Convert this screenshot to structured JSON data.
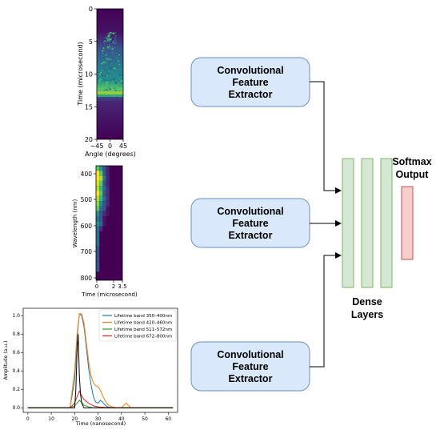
{
  "panel_top": {
    "ylabel": "Time (microsecond)",
    "xlabel": "Angle (degrees)",
    "yticks": [
      "0",
      "5",
      "10",
      "15",
      "20"
    ],
    "xticks": [
      "−45",
      "0",
      "45"
    ]
  },
  "panel_mid": {
    "ylabel": "Wavelength (nm)",
    "xlabel": "Time (microsecond)",
    "yticks": [
      "400",
      "500",
      "600",
      "700",
      "800"
    ],
    "xticks": [
      "0",
      "2",
      "3.5"
    ]
  },
  "extractors": [
    {
      "line1": "Convolutional",
      "line2": "Feature",
      "line3": "Extractor"
    },
    {
      "line1": "Convolutional",
      "line2": "Feature",
      "line3": "Extractor"
    },
    {
      "line1": "Convolutional",
      "line2": "Feature",
      "line3": "Extractor"
    }
  ],
  "dense": {
    "line1": "Dense",
    "line2": "Layers"
  },
  "softmax": {
    "line1": "Softmax",
    "line2": "Output"
  },
  "colors": {
    "extractor_fill": "#dae8fc",
    "extractor_stroke": "#6c8ebf",
    "dense_fill": "#d5e8d4",
    "dense_stroke": "#82b366",
    "softmax_fill": "#f8cecc",
    "softmax_stroke": "#b85450",
    "heat_dark": "#440154"
  },
  "chart_data": {
    "type": "line",
    "xlabel": "Time (nanosecond)",
    "ylabel": "Amplitude (a.u.)",
    "xlim": [
      -2,
      64
    ],
    "ylim": [
      -0.05,
      1.08
    ],
    "xticks": [
      "0",
      "10",
      "20",
      "30",
      "40",
      "50",
      "60"
    ],
    "yticks": [
      "0.0",
      "0.2",
      "0.4",
      "0.6",
      "0.8",
      "1.0"
    ],
    "legend_position": "top-right",
    "series": [
      {
        "name": "Lifetime band 350–400nm",
        "color": "#1f77b4",
        "x": [
          0,
          10,
          18,
          20,
          21,
          22,
          23,
          24,
          25,
          26,
          27,
          28,
          29,
          30,
          31,
          32,
          33,
          34,
          36,
          40,
          50,
          62
        ],
        "y": [
          0.0,
          0.0,
          0.0,
          0.3,
          0.75,
          1.02,
          1.0,
          0.88,
          0.65,
          0.42,
          0.25,
          0.12,
          0.06,
          0.05,
          0.08,
          0.06,
          0.03,
          0.01,
          0.0,
          0.0,
          0.0,
          0.0
        ]
      },
      {
        "name": "Lifetime band 420–460nm",
        "color": "#ff7f0e",
        "x": [
          0,
          10,
          18,
          20,
          21,
          22,
          23,
          24,
          25,
          26,
          27,
          28,
          29,
          30,
          31,
          32,
          33,
          34,
          35,
          36,
          38,
          40,
          42,
          44,
          46,
          50,
          60,
          62
        ],
        "y": [
          0.0,
          0.0,
          0.0,
          0.4,
          0.8,
          1.02,
          1.02,
          0.92,
          0.7,
          0.5,
          0.35,
          0.27,
          0.24,
          0.23,
          0.19,
          0.13,
          0.08,
          0.04,
          0.02,
          0.01,
          0.0,
          0.0,
          0.05,
          0.0,
          0.0,
          0.0,
          0.0,
          0.0
        ]
      },
      {
        "name": "Lifetime band 511–572nm",
        "color": "#2ca02c",
        "x": [
          0,
          10,
          18,
          20,
          21,
          22,
          23,
          24,
          26,
          28,
          30,
          40,
          62
        ],
        "y": [
          0.0,
          0.0,
          0.0,
          0.02,
          0.05,
          0.08,
          0.06,
          0.03,
          0.01,
          0.0,
          0.0,
          0.0,
          0.0
        ]
      },
      {
        "name": "Lifetime band 672–800nm",
        "color": "#d62728",
        "x": [
          0,
          10,
          18,
          20,
          21,
          22,
          23,
          24,
          26,
          28,
          30,
          35,
          62
        ],
        "y": [
          0.0,
          0.0,
          0.0,
          0.05,
          0.12,
          0.18,
          0.13,
          0.09,
          0.05,
          0.02,
          0.01,
          0.0,
          0.0
        ]
      },
      {
        "name": "",
        "color": "#000000",
        "x": [
          0,
          18,
          20,
          20.5,
          21,
          21.5,
          22,
          22.5,
          23,
          24,
          62
        ],
        "y": [
          0.0,
          0.0,
          0.0,
          0.2,
          0.6,
          0.8,
          0.35,
          0.15,
          0.05,
          0.0,
          0.0
        ]
      }
    ]
  }
}
